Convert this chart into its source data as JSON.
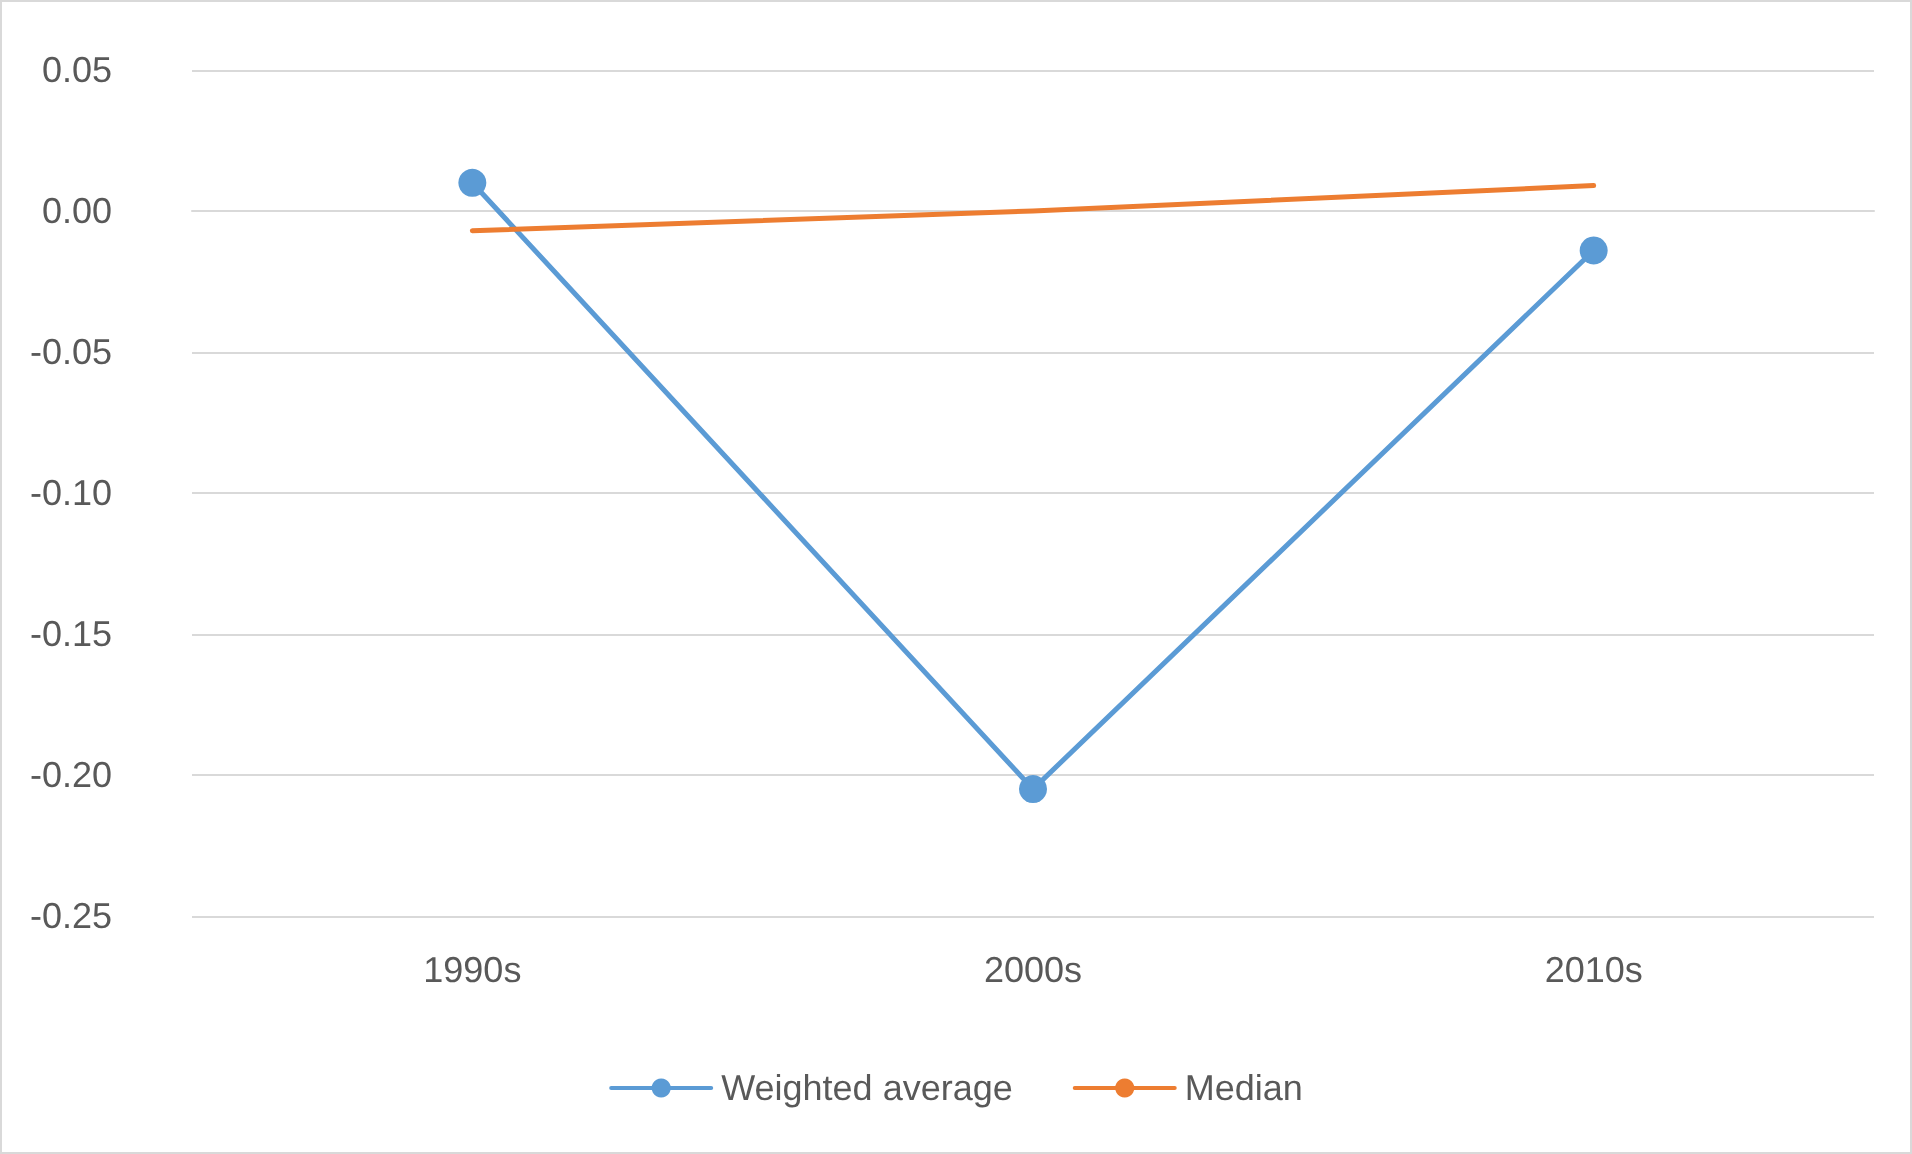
{
  "chart_data": {
    "type": "line",
    "categories": [
      "1990s",
      "2000s",
      "2010s"
    ],
    "series": [
      {
        "name": "Weighted average",
        "color": "#5b9bd5",
        "values": [
          0.01,
          -0.205,
          -0.014
        ],
        "marker": "circle"
      },
      {
        "name": "Median",
        "color": "#ed7d31",
        "values": [
          -0.007,
          0.0,
          0.009
        ],
        "marker": "none"
      }
    ],
    "ylim": [
      -0.25,
      0.05
    ],
    "yticks": [
      {
        "value": -0.25,
        "label": "-0.25"
      },
      {
        "value": -0.2,
        "label": "-0.20"
      },
      {
        "value": -0.15,
        "label": "-0.15"
      },
      {
        "value": -0.1,
        "label": "-0.10"
      },
      {
        "value": -0.05,
        "label": "-0.05"
      },
      {
        "value": 0,
        "label": "0.00"
      },
      {
        "value": 0.05,
        "label": "0.05"
      }
    ],
    "grid": "y",
    "legend": "bottom",
    "line_style": "solid"
  }
}
